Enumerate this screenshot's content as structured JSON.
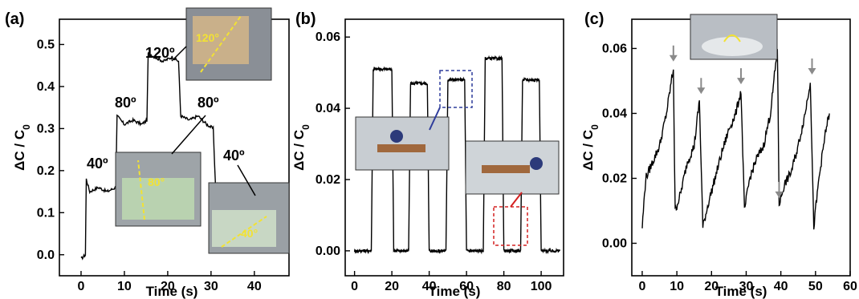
{
  "chart_data": [
    {
      "panel_label": "(a)",
      "type": "line",
      "xlabel": "Time (s)",
      "ylabel": "ΔC / C",
      "ylabel_sub": "0",
      "xlim": [
        -5,
        48
      ],
      "ylim": [
        -0.05,
        0.56
      ],
      "xticks": [
        "0",
        "10",
        "20",
        "30",
        "40"
      ],
      "yticks": [
        "0.0",
        "0.1",
        "0.2",
        "0.3",
        "0.4",
        "0.5"
      ],
      "x": [
        0,
        1,
        1.2,
        2,
        4,
        6,
        8,
        8.3,
        10,
        12,
        14,
        15.2,
        15.5,
        17,
        19,
        21,
        22.5,
        23,
        25,
        27,
        29,
        30.5,
        31,
        33,
        35,
        37,
        40,
        42,
        43
      ],
      "y": [
        -0.01,
        0.0,
        0.18,
        0.15,
        0.16,
        0.15,
        0.16,
        0.33,
        0.31,
        0.32,
        0.31,
        0.32,
        0.48,
        0.47,
        0.46,
        0.47,
        0.46,
        0.33,
        0.32,
        0.33,
        0.31,
        0.3,
        0.17,
        0.16,
        0.15,
        0.14,
        0.13,
        0.13,
        0.12
      ],
      "annotations": [
        "40º",
        "80º",
        "120º",
        "80º",
        "40º"
      ],
      "inset_labels": [
        "120°",
        "80°",
        "40°"
      ]
    },
    {
      "panel_label": "(b)",
      "type": "line",
      "xlabel": "Time (s)",
      "ylabel": "ΔC / C",
      "ylabel_sub": "0",
      "xlim": [
        -5,
        112
      ],
      "ylim": [
        -0.007,
        0.065
      ],
      "xticks": [
        "0",
        "20",
        "40",
        "60",
        "80",
        "100"
      ],
      "yticks": [
        "0.00",
        "0.02",
        "0.04",
        "0.06"
      ],
      "x": [
        0,
        9,
        10,
        20,
        21,
        29,
        30,
        39,
        40,
        49,
        50,
        59,
        60,
        69,
        70,
        79,
        80,
        89,
        90,
        99,
        100,
        110
      ],
      "y": [
        0.0,
        0.0,
        0.051,
        0.051,
        0.0,
        0.0,
        0.047,
        0.047,
        0.0,
        0.0,
        0.048,
        0.048,
        0.0,
        0.0,
        0.054,
        0.054,
        0.0,
        0.0,
        0.048,
        0.048,
        0.0,
        0.0
      ]
    },
    {
      "panel_label": "(c)",
      "type": "line",
      "xlabel": "Time (s)",
      "ylabel": "ΔC / C",
      "ylabel_sub": "0",
      "xlim": [
        -3,
        60
      ],
      "ylim": [
        -0.01,
        0.069
      ],
      "xticks": [
        "0",
        "10",
        "20",
        "30",
        "40",
        "50",
        "60"
      ],
      "yticks": [
        "0.00",
        "0.02",
        "0.04",
        "0.06"
      ],
      "x": [
        0,
        1,
        3,
        5,
        7,
        9,
        9.5,
        11,
        13,
        15,
        16.5,
        17.5,
        19,
        21,
        23,
        25,
        27,
        28.5,
        29.5,
        31,
        33,
        35,
        37,
        39,
        39.5,
        41,
        43,
        45,
        47,
        48.5,
        49.5,
        51,
        53,
        54
      ],
      "y": [
        0.005,
        0.02,
        0.025,
        0.03,
        0.04,
        0.054,
        0.01,
        0.015,
        0.025,
        0.03,
        0.044,
        0.005,
        0.012,
        0.02,
        0.028,
        0.035,
        0.04,
        0.047,
        0.01,
        0.02,
        0.026,
        0.03,
        0.04,
        0.06,
        0.012,
        0.018,
        0.022,
        0.03,
        0.04,
        0.05,
        0.005,
        0.02,
        0.035,
        0.04
      ],
      "markers": [
        9,
        17,
        28.5,
        39.5,
        49
      ]
    }
  ]
}
